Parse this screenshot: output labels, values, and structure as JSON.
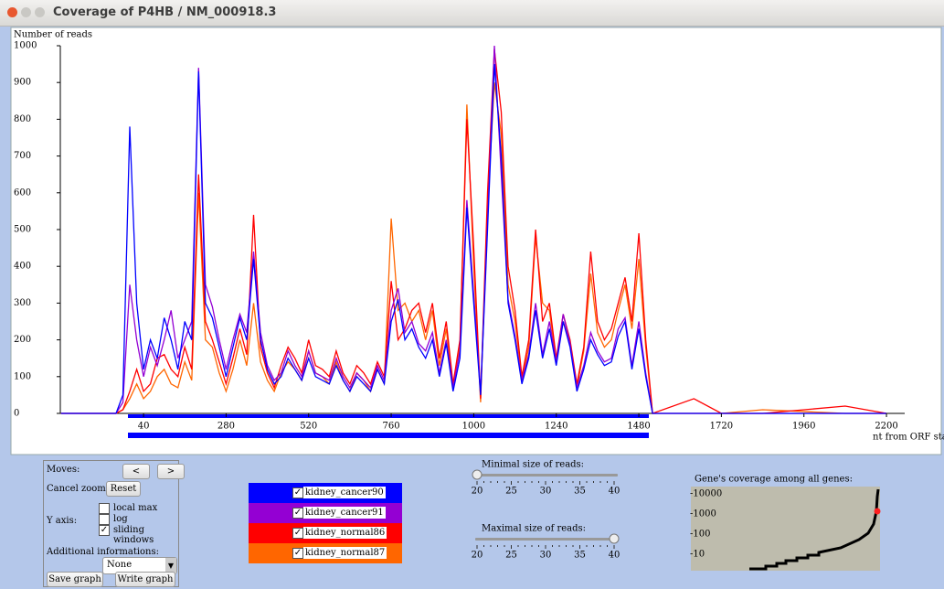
{
  "window": {
    "title": "Coverage of P4HB / NM_000918.3"
  },
  "chart_data": {
    "type": "line",
    "ylabel": "Number of reads",
    "xlabel": "nt from ORF start",
    "xlim": [
      -202,
      2253
    ],
    "ylim": [
      0,
      1000
    ],
    "xticks": [
      40,
      280,
      520,
      760,
      1000,
      1240,
      1480,
      1720,
      1960,
      2200
    ],
    "yticks": [
      0,
      100,
      200,
      300,
      400,
      500,
      600,
      700,
      800,
      900,
      1000
    ],
    "x": [
      -200,
      -40,
      -20,
      0,
      20,
      40,
      60,
      80,
      100,
      120,
      140,
      160,
      180,
      200,
      220,
      240,
      260,
      280,
      300,
      320,
      340,
      360,
      380,
      400,
      420,
      440,
      460,
      480,
      500,
      520,
      540,
      560,
      580,
      600,
      620,
      640,
      660,
      680,
      700,
      720,
      740,
      760,
      780,
      800,
      820,
      840,
      860,
      880,
      900,
      920,
      940,
      960,
      980,
      1000,
      1020,
      1040,
      1060,
      1080,
      1100,
      1120,
      1140,
      1160,
      1180,
      1200,
      1220,
      1240,
      1260,
      1280,
      1300,
      1320,
      1340,
      1360,
      1380,
      1400,
      1420,
      1440,
      1460,
      1480,
      1500,
      1520,
      1640,
      1720,
      1840,
      2080,
      2200
    ],
    "series": [
      {
        "name": "kidney_cancer90",
        "color": "#0000ff",
        "values": [
          0,
          0,
          50,
          780,
          300,
          120,
          200,
          150,
          260,
          200,
          120,
          250,
          200,
          930,
          300,
          260,
          180,
          100,
          180,
          260,
          200,
          420,
          200,
          120,
          80,
          100,
          150,
          120,
          90,
          150,
          100,
          90,
          80,
          130,
          90,
          60,
          100,
          80,
          60,
          120,
          80,
          250,
          310,
          200,
          230,
          180,
          150,
          200,
          100,
          190,
          60,
          150,
          560,
          300,
          50,
          500,
          950,
          700,
          300,
          200,
          80,
          150,
          280,
          150,
          230,
          130,
          250,
          180,
          60,
          120,
          200,
          160,
          130,
          140,
          210,
          250,
          120,
          230,
          100,
          0,
          0,
          0,
          0,
          0,
          0
        ]
      },
      {
        "name": "kidney_cancer91",
        "color": "#9400d3",
        "values": [
          0,
          0,
          30,
          350,
          200,
          100,
          180,
          130,
          200,
          280,
          150,
          200,
          250,
          940,
          350,
          290,
          200,
          120,
          200,
          270,
          220,
          440,
          220,
          130,
          90,
          110,
          170,
          130,
          100,
          170,
          110,
          100,
          90,
          150,
          100,
          70,
          110,
          90,
          70,
          130,
          90,
          280,
          340,
          220,
          250,
          190,
          170,
          220,
          110,
          200,
          70,
          170,
          580,
          320,
          60,
          520,
          1000,
          650,
          310,
          210,
          90,
          160,
          300,
          160,
          250,
          140,
          270,
          190,
          70,
          130,
          220,
          170,
          140,
          150,
          230,
          260,
          130,
          250,
          110,
          0,
          0,
          0,
          0,
          0,
          0
        ]
      },
      {
        "name": "kidney_normal86",
        "color": "#ff0000",
        "values": [
          0,
          0,
          10,
          60,
          120,
          60,
          80,
          150,
          160,
          120,
          100,
          180,
          120,
          650,
          250,
          200,
          140,
          80,
          150,
          230,
          160,
          540,
          180,
          110,
          70,
          130,
          180,
          150,
          110,
          200,
          130,
          120,
          100,
          170,
          110,
          80,
          130,
          110,
          80,
          140,
          100,
          360,
          200,
          230,
          280,
          300,
          220,
          300,
          150,
          250,
          80,
          200,
          800,
          450,
          40,
          600,
          990,
          820,
          400,
          280,
          100,
          200,
          500,
          250,
          300,
          150,
          270,
          200,
          80,
          180,
          440,
          250,
          200,
          230,
          300,
          370,
          250,
          490,
          200,
          0,
          40,
          0,
          0,
          20,
          0
        ]
      },
      {
        "name": "kidney_normal87",
        "color": "#ff6600",
        "values": [
          0,
          0,
          10,
          40,
          80,
          40,
          60,
          100,
          120,
          80,
          70,
          140,
          90,
          600,
          200,
          180,
          110,
          60,
          120,
          200,
          130,
          300,
          140,
          90,
          60,
          110,
          140,
          120,
          90,
          170,
          110,
          100,
          80,
          140,
          90,
          60,
          110,
          90,
          60,
          120,
          80,
          530,
          280,
          300,
          250,
          280,
          200,
          280,
          130,
          230,
          70,
          180,
          840,
          400,
          30,
          560,
          900,
          760,
          350,
          250,
          90,
          180,
          480,
          300,
          280,
          140,
          250,
          190,
          70,
          170,
          380,
          220,
          180,
          200,
          280,
          350,
          230,
          420,
          180,
          0,
          0,
          0,
          10,
          0,
          0
        ]
      }
    ]
  },
  "controls": {
    "moves": "Moves:",
    "prev": "<",
    "next": ">",
    "cancel_zoom": "Cancel zoom:",
    "reset": "Reset",
    "y_axis": "Y axis:",
    "local_max": "local max",
    "log": "log",
    "sliding_windows": "sliding windows",
    "additional": "Additional informations:",
    "select": "None",
    "save": "Save graph",
    "write": "Write graph"
  },
  "min_read_size": {
    "label": "Minimal size of reads:",
    "ticks": [
      20,
      25,
      30,
      35,
      40
    ],
    "value": 20
  },
  "max_read_size": {
    "label": "Maximal size of reads:",
    "ticks": [
      20,
      25,
      30,
      35,
      40
    ],
    "value": 40
  },
  "gene_coverage": {
    "title": "Gene's coverage among all genes:",
    "labels": [
      "-10000",
      "-1000",
      "-100",
      "-10"
    ]
  }
}
